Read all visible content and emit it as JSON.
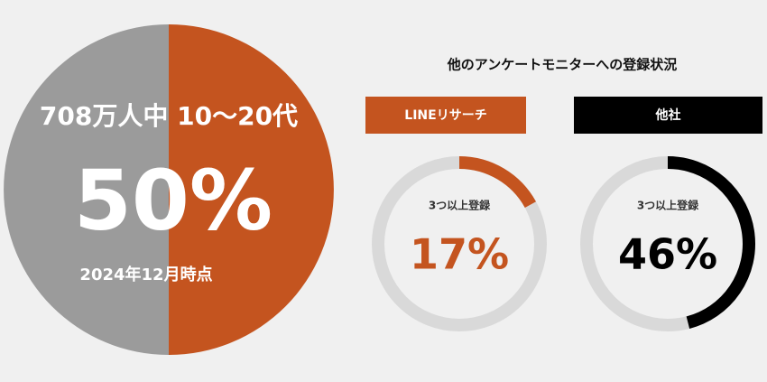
{
  "heading": "他のアンケートモニターへの登録状況",
  "chart_data": [
    {
      "type": "pie",
      "title": "708万人中 10〜20代",
      "subtitle": "2024年12月時点",
      "values": [
        50,
        50
      ],
      "value_labels": [
        "50%",
        null
      ],
      "colors": [
        "#c4541f",
        "#9b9b9b"
      ]
    },
    {
      "type": "donut",
      "title": "LINEリサーチ",
      "label": "3つ以上登録",
      "values": [
        17
      ],
      "value_labels": [
        "17%"
      ],
      "color": "#c4541f"
    },
    {
      "type": "donut",
      "title": "他社",
      "label": "3つ以上登録",
      "values": [
        46
      ],
      "value_labels": [
        "46%"
      ],
      "color": "#000000"
    }
  ]
}
